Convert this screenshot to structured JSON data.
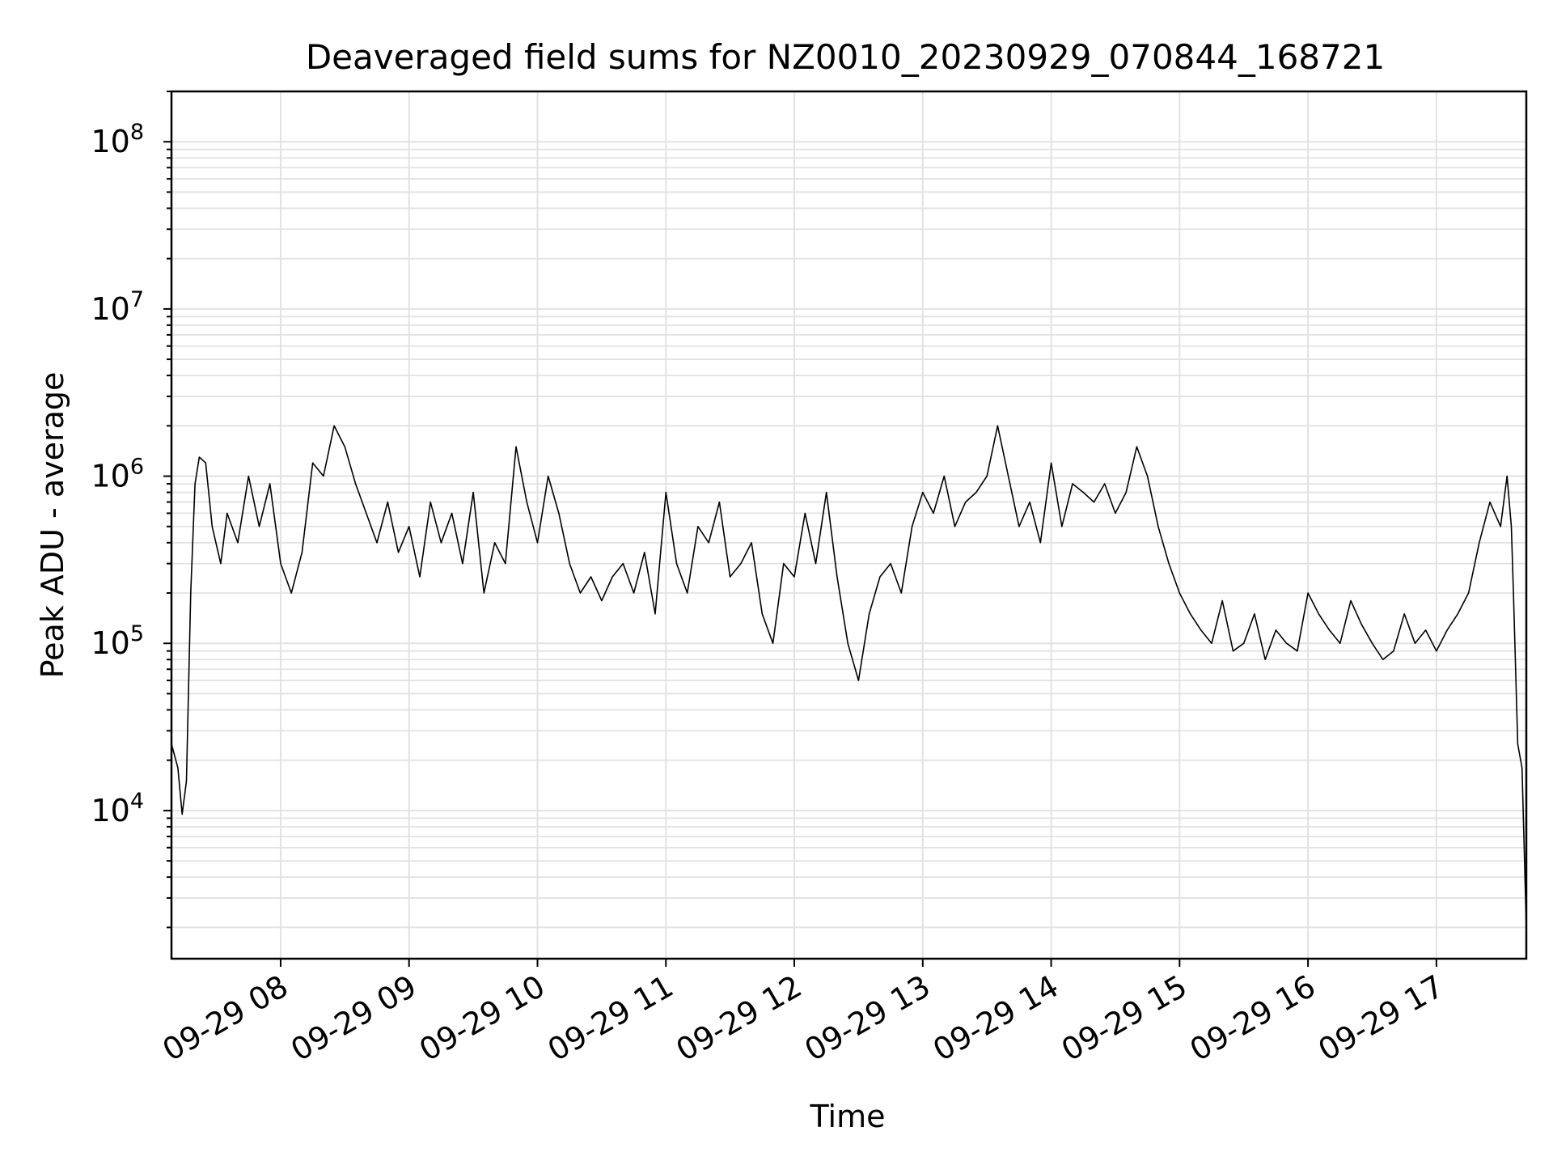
{
  "chart_data": {
    "type": "line",
    "title": "Deaveraged field sums for NZ0010_20230929_070844_168721",
    "xlabel": "Time",
    "ylabel": "Peak ADU - average",
    "y_scale": "log",
    "ylim": [
      1300,
      200000000
    ],
    "xlim": [
      "09-29 07:09",
      "09-29 17:42"
    ],
    "grid": true,
    "x_ticks": [
      "09-29 08",
      "09-29 09",
      "09-29 10",
      "09-29 11",
      "09-29 12",
      "09-29 13",
      "09-29 14",
      "09-29 15",
      "09-29 16",
      "09-29 17"
    ],
    "y_ticks": [
      {
        "value": 10000,
        "base": "10",
        "exp": "4"
      },
      {
        "value": 100000,
        "base": "10",
        "exp": "5"
      },
      {
        "value": 1000000,
        "base": "10",
        "exp": "6"
      },
      {
        "value": 10000000,
        "base": "10",
        "exp": "7"
      },
      {
        "value": 100000000,
        "base": "10",
        "exp": "8"
      }
    ],
    "series": [
      {
        "color": "#000000",
        "x": [
          "09-29 07:09",
          "09-29 07:12",
          "09-29 07:14",
          "09-29 07:16",
          "09-29 07:18",
          "09-29 07:20",
          "09-29 07:22",
          "09-29 07:25",
          "09-29 07:28",
          "09-29 07:32",
          "09-29 07:35",
          "09-29 07:40",
          "09-29 07:45",
          "09-29 07:50",
          "09-29 07:55",
          "09-29 08:00",
          "09-29 08:05",
          "09-29 08:10",
          "09-29 08:15",
          "09-29 08:20",
          "09-29 08:25",
          "09-29 08:30",
          "09-29 08:35",
          "09-29 08:40",
          "09-29 08:45",
          "09-29 08:50",
          "09-29 08:55",
          "09-29 09:00",
          "09-29 09:05",
          "09-29 09:10",
          "09-29 09:15",
          "09-29 09:20",
          "09-29 09:25",
          "09-29 09:30",
          "09-29 09:35",
          "09-29 09:40",
          "09-29 09:45",
          "09-29 09:50",
          "09-29 09:55",
          "09-29 10:00",
          "09-29 10:05",
          "09-29 10:10",
          "09-29 10:15",
          "09-29 10:20",
          "09-29 10:25",
          "09-29 10:30",
          "09-29 10:35",
          "09-29 10:40",
          "09-29 10:45",
          "09-29 10:50",
          "09-29 10:55",
          "09-29 11:00",
          "09-29 11:05",
          "09-29 11:10",
          "09-29 11:15",
          "09-29 11:20",
          "09-29 11:25",
          "09-29 11:30",
          "09-29 11:35",
          "09-29 11:40",
          "09-29 11:45",
          "09-29 11:50",
          "09-29 11:55",
          "09-29 12:00",
          "09-29 12:05",
          "09-29 12:10",
          "09-29 12:15",
          "09-29 12:20",
          "09-29 12:25",
          "09-29 12:30",
          "09-29 12:35",
          "09-29 12:40",
          "09-29 12:45",
          "09-29 12:50",
          "09-29 12:55",
          "09-29 13:00",
          "09-29 13:05",
          "09-29 13:10",
          "09-29 13:15",
          "09-29 13:20",
          "09-29 13:25",
          "09-29 13:30",
          "09-29 13:35",
          "09-29 13:40",
          "09-29 13:45",
          "09-29 13:50",
          "09-29 13:55",
          "09-29 14:00",
          "09-29 14:05",
          "09-29 14:10",
          "09-29 14:15",
          "09-29 14:20",
          "09-29 14:25",
          "09-29 14:30",
          "09-29 14:35",
          "09-29 14:40",
          "09-29 14:45",
          "09-29 14:50",
          "09-29 14:55",
          "09-29 15:00",
          "09-29 15:05",
          "09-29 15:10",
          "09-29 15:15",
          "09-29 15:20",
          "09-29 15:25",
          "09-29 15:30",
          "09-29 15:35",
          "09-29 15:40",
          "09-29 15:45",
          "09-29 15:50",
          "09-29 15:55",
          "09-29 16:00",
          "09-29 16:05",
          "09-29 16:10",
          "09-29 16:15",
          "09-29 16:20",
          "09-29 16:25",
          "09-29 16:30",
          "09-29 16:35",
          "09-29 16:40",
          "09-29 16:45",
          "09-29 16:50",
          "09-29 16:55",
          "09-29 17:00",
          "09-29 17:05",
          "09-29 17:10",
          "09-29 17:15",
          "09-29 17:20",
          "09-29 17:25",
          "09-29 17:30",
          "09-29 17:33",
          "09-29 17:35",
          "09-29 17:36",
          "09-29 17:38",
          "09-29 17:40",
          "09-29 17:42"
        ],
        "y": [
          25000,
          18000,
          9500,
          15000,
          200000,
          900000,
          1300000,
          1200000,
          500000,
          300000,
          600000,
          400000,
          1000000,
          500000,
          900000,
          300000,
          200000,
          350000,
          1200000,
          1000000,
          2000000,
          1500000,
          900000,
          600000,
          400000,
          700000,
          350000,
          500000,
          250000,
          700000,
          400000,
          600000,
          300000,
          800000,
          200000,
          400000,
          300000,
          1500000,
          700000,
          400000,
          1000000,
          600000,
          300000,
          200000,
          250000,
          180000,
          250000,
          300000,
          200000,
          350000,
          150000,
          800000,
          300000,
          200000,
          500000,
          400000,
          700000,
          250000,
          300000,
          400000,
          150000,
          100000,
          300000,
          250000,
          600000,
          300000,
          800000,
          250000,
          100000,
          60000,
          150000,
          250000,
          300000,
          200000,
          500000,
          800000,
          600000,
          1000000,
          500000,
          700000,
          800000,
          1000000,
          2000000,
          1000000,
          500000,
          700000,
          400000,
          1200000,
          500000,
          900000,
          800000,
          700000,
          900000,
          600000,
          800000,
          1500000,
          1000000,
          500000,
          300000,
          200000,
          150000,
          120000,
          100000,
          180000,
          90000,
          100000,
          150000,
          80000,
          120000,
          100000,
          90000,
          200000,
          150000,
          120000,
          100000,
          180000,
          130000,
          100000,
          80000,
          90000,
          150000,
          100000,
          120000,
          90000,
          120000,
          150000,
          200000,
          400000,
          700000,
          500000,
          1000000,
          500000,
          200000,
          25000,
          18000,
          2000
        ]
      }
    ]
  }
}
